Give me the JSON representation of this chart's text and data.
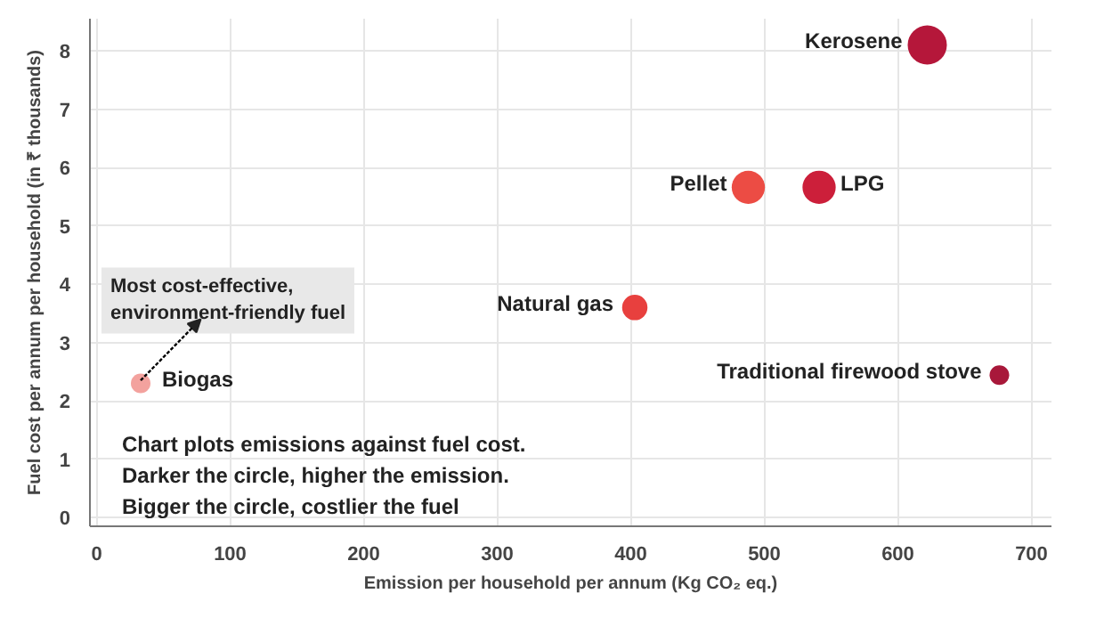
{
  "chart_data": {
    "type": "bubble",
    "xlabel": "Emission per household per annum (Kg CO₂ eq.)",
    "ylabel": "Fuel cost per annum per household (in ₹ thousands)",
    "x": [
      33,
      403,
      488,
      541,
      622,
      676
    ],
    "values": [
      2.3,
      3.6,
      5.66,
      5.66,
      8.1,
      2.44
    ],
    "sizes": [
      0.25,
      0.42,
      0.72,
      0.72,
      1,
      0.25
    ],
    "colors": [
      "#f3a29e",
      "#e8403e",
      "#ec4c44",
      "#cc1f3a",
      "#b5173a",
      "#a8183a"
    ],
    "xlim": [
      -5,
      715
    ],
    "ylim": [
      -0.15,
      8.55
    ],
    "xticks": [
      0,
      100,
      200,
      300,
      400,
      500,
      600,
      700
    ],
    "yticks": [
      0,
      1,
      2,
      3,
      4,
      5,
      6,
      7,
      8
    ],
    "grid": true,
    "annotations": [
      "Chart plots emissions against fuel cost.\nDarker the circle, higher the emission.\nBigger the circle, costlier the fuel",
      {
        "text": "Most cost-effective,\nenvironment-friendly fuel",
        "x": 33,
        "y": 2.3
      },
      {
        "text": "Biogas",
        "x": 33,
        "y": 2.3
      },
      {
        "text": "Natural gas",
        "x": 403,
        "y": 3.6
      },
      {
        "text": "Pellet",
        "x": 488,
        "y": 5.66
      },
      {
        "text": "LPG",
        "x": 541,
        "y": 5.66
      },
      {
        "text": "Kerosene",
        "x": 622,
        "y": 8.1
      },
      {
        "text": "Traditional firewood stove",
        "x": 676,
        "y": 2.44
      }
    ]
  }
}
